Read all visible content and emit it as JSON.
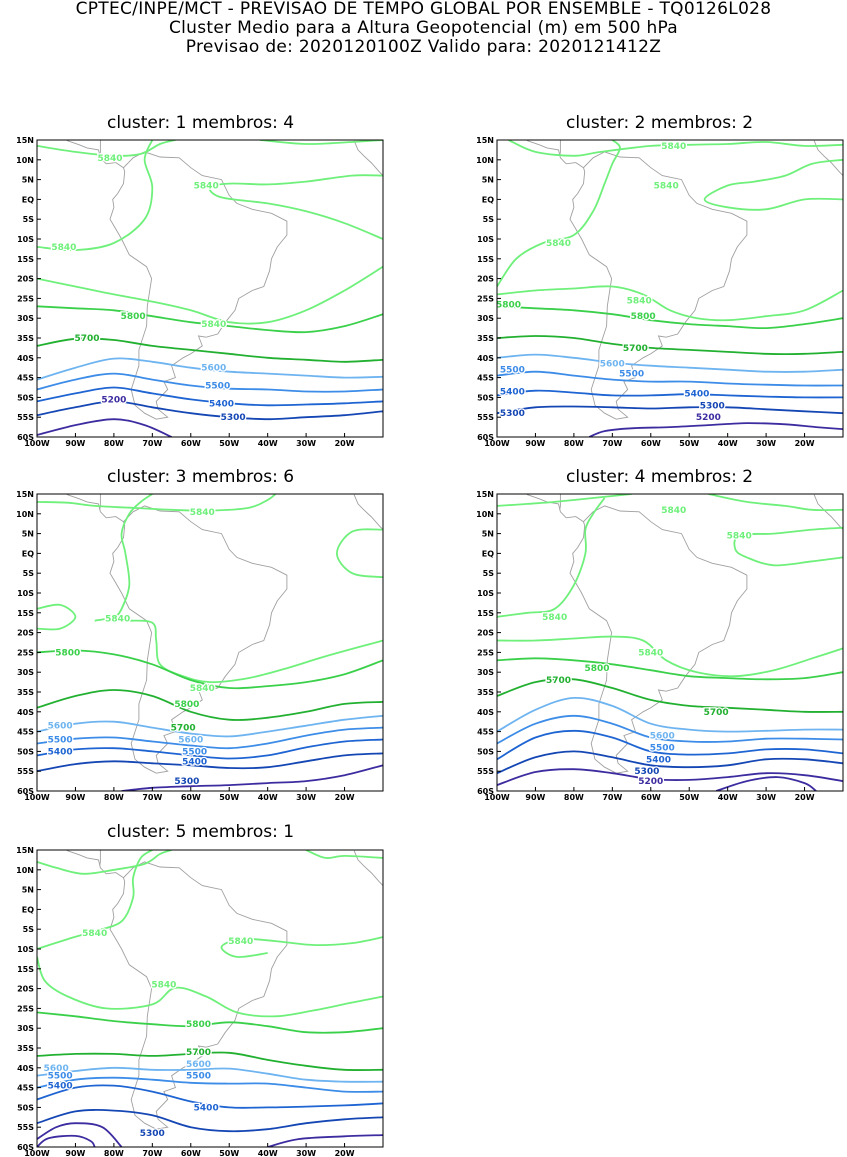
{
  "header": {
    "line1": "CPTEC/INPE/MCT - PREVISAO DE TEMPO GLOBAL POR ENSEMBLE - TQ0126L028",
    "line2": "Cluster Medio para a Altura Geopotencial (m) em 500 hPa",
    "line3": "Previsao de: 2020120100Z    Valido para: 2020121412Z"
  },
  "axes": {
    "lat_labels": [
      "15N",
      "10N",
      "5N",
      "EQ",
      "5S",
      "10S",
      "15S",
      "20S",
      "25S",
      "30S",
      "35S",
      "40S",
      "45S",
      "50S",
      "55S",
      "60S"
    ],
    "lon_labels": [
      "100W",
      "90W",
      "80W",
      "70W",
      "60W",
      "50W",
      "40W",
      "30W",
      "20W"
    ],
    "lat_range": [
      -60,
      15
    ],
    "lon_range": [
      -100,
      -10
    ]
  },
  "colors": {
    "c5840": "#6ef07a",
    "c5800": "#3ad04a",
    "c5700": "#22b030",
    "c5600": "#6eb4f0",
    "c5500": "#3c8ce8",
    "c5400": "#1e64d2",
    "c5300": "#1446b4",
    "c5200": "#3c2ca0",
    "coast": "#a0a0a0"
  },
  "panels": [
    {
      "title": "cluster: 1   membros: 4",
      "labels": [
        {
          "text": "5840",
          "lon": -81,
          "lat": 10.5,
          "color": "c5840"
        },
        {
          "text": "5840",
          "lon": -56,
          "lat": 3.5,
          "color": "c5840"
        },
        {
          "text": "5840",
          "lon": -93,
          "lat": -12,
          "color": "c5840"
        },
        {
          "text": "5840",
          "lon": -54,
          "lat": -31.5,
          "color": "c5840"
        },
        {
          "text": "5800",
          "lon": -75,
          "lat": -29.5,
          "color": "c5800"
        },
        {
          "text": "5700",
          "lon": -87,
          "lat": -35,
          "color": "c5700"
        },
        {
          "text": "5600",
          "lon": -54,
          "lat": -42.5,
          "color": "c5600"
        },
        {
          "text": "5500",
          "lon": -53,
          "lat": -47,
          "color": "c5500"
        },
        {
          "text": "5400",
          "lon": -52,
          "lat": -51.5,
          "color": "c5400"
        },
        {
          "text": "5300",
          "lon": -49,
          "lat": -55,
          "color": "c5300"
        },
        {
          "text": "5200",
          "lon": -80,
          "lat": -50.5,
          "color": "c5200"
        }
      ]
    },
    {
      "title": "cluster: 2   membros: 2",
      "labels": [
        {
          "text": "5840",
          "lon": -54,
          "lat": 13.5,
          "color": "c5840"
        },
        {
          "text": "5840",
          "lon": -56,
          "lat": 3.5,
          "color": "c5840"
        },
        {
          "text": "5840",
          "lon": -84,
          "lat": -11,
          "color": "c5840"
        },
        {
          "text": "5840",
          "lon": -63,
          "lat": -25.5,
          "color": "c5840"
        },
        {
          "text": "5800",
          "lon": -97,
          "lat": -26.5,
          "color": "c5800"
        },
        {
          "text": "5800",
          "lon": -62,
          "lat": -29.5,
          "color": "c5800"
        },
        {
          "text": "5700",
          "lon": -64,
          "lat": -37.5,
          "color": "c5700"
        },
        {
          "text": "5600",
          "lon": -70,
          "lat": -41.5,
          "color": "c5600"
        },
        {
          "text": "5500",
          "lon": -96,
          "lat": -43,
          "color": "c5500"
        },
        {
          "text": "5500",
          "lon": -65,
          "lat": -44,
          "color": "c5500"
        },
        {
          "text": "5400",
          "lon": -96,
          "lat": -48.5,
          "color": "c5400"
        },
        {
          "text": "5400",
          "lon": -48,
          "lat": -49,
          "color": "c5400"
        },
        {
          "text": "5300",
          "lon": -44,
          "lat": -52,
          "color": "c5300"
        },
        {
          "text": "5300",
          "lon": -96,
          "lat": -54,
          "color": "c5300"
        },
        {
          "text": "5200",
          "lon": -45,
          "lat": -55,
          "color": "c5200"
        }
      ]
    },
    {
      "title": "cluster: 3   membros: 6",
      "labels": [
        {
          "text": "5840",
          "lon": -57,
          "lat": 10.5,
          "color": "c5840"
        },
        {
          "text": "5840",
          "lon": -79,
          "lat": -16.5,
          "color": "c5840"
        },
        {
          "text": "5800",
          "lon": -92,
          "lat": -25,
          "color": "c5800"
        },
        {
          "text": "5840",
          "lon": -57,
          "lat": -34,
          "color": "c5840"
        },
        {
          "text": "5800",
          "lon": -61,
          "lat": -38,
          "color": "c5800"
        },
        {
          "text": "5700",
          "lon": -62,
          "lat": -44,
          "color": "c5700"
        },
        {
          "text": "5600",
          "lon": -94,
          "lat": -43.5,
          "color": "c5600"
        },
        {
          "text": "5600",
          "lon": -60,
          "lat": -47,
          "color": "c5600"
        },
        {
          "text": "5500",
          "lon": -94,
          "lat": -47,
          "color": "c5500"
        },
        {
          "text": "5500",
          "lon": -59,
          "lat": -50,
          "color": "c5500"
        },
        {
          "text": "5400",
          "lon": -94,
          "lat": -50,
          "color": "c5400"
        },
        {
          "text": "5400",
          "lon": -59,
          "lat": -52.5,
          "color": "c5400"
        },
        {
          "text": "5300",
          "lon": -61,
          "lat": -57.5,
          "color": "c5300"
        }
      ]
    },
    {
      "title": "cluster: 4   membros: 2",
      "labels": [
        {
          "text": "5840",
          "lon": -54,
          "lat": 11,
          "color": "c5840"
        },
        {
          "text": "5840",
          "lon": -37,
          "lat": 4.5,
          "color": "c5840"
        },
        {
          "text": "5840",
          "lon": -85,
          "lat": -16,
          "color": "c5840"
        },
        {
          "text": "5840",
          "lon": -60,
          "lat": -25,
          "color": "c5840"
        },
        {
          "text": "5800",
          "lon": -74,
          "lat": -29,
          "color": "c5800"
        },
        {
          "text": "5700",
          "lon": -84,
          "lat": -32,
          "color": "c5700"
        },
        {
          "text": "5700",
          "lon": -43,
          "lat": -40,
          "color": "c5700"
        },
        {
          "text": "5600",
          "lon": -57,
          "lat": -46,
          "color": "c5600"
        },
        {
          "text": "5500",
          "lon": -57,
          "lat": -49,
          "color": "c5500"
        },
        {
          "text": "5400",
          "lon": -58,
          "lat": -52,
          "color": "c5400"
        },
        {
          "text": "5300",
          "lon": -61,
          "lat": -55,
          "color": "c5300"
        },
        {
          "text": "5200",
          "lon": -60,
          "lat": -57.5,
          "color": "c5200"
        }
      ]
    },
    {
      "title": "cluster: 5   membros: 1",
      "labels": [
        {
          "text": "5840",
          "lon": -85,
          "lat": -6,
          "color": "c5840"
        },
        {
          "text": "5840",
          "lon": -47,
          "lat": -8,
          "color": "c5840"
        },
        {
          "text": "5840",
          "lon": -67,
          "lat": -19,
          "color": "c5840"
        },
        {
          "text": "5800",
          "lon": -58,
          "lat": -29,
          "color": "c5800"
        },
        {
          "text": "5700",
          "lon": -58,
          "lat": -36,
          "color": "c5700"
        },
        {
          "text": "5600",
          "lon": -95,
          "lat": -40,
          "color": "c5600"
        },
        {
          "text": "5600",
          "lon": -58,
          "lat": -39,
          "color": "c5600"
        },
        {
          "text": "5500",
          "lon": -94,
          "lat": -42,
          "color": "c5500"
        },
        {
          "text": "5500",
          "lon": -58,
          "lat": -42,
          "color": "c5500"
        },
        {
          "text": "5400",
          "lon": -94,
          "lat": -44.5,
          "color": "c5400"
        },
        {
          "text": "5400",
          "lon": -56,
          "lat": -50,
          "color": "c5400"
        },
        {
          "text": "5300",
          "lon": -70,
          "lat": -56.5,
          "color": "c5300"
        }
      ]
    }
  ]
}
